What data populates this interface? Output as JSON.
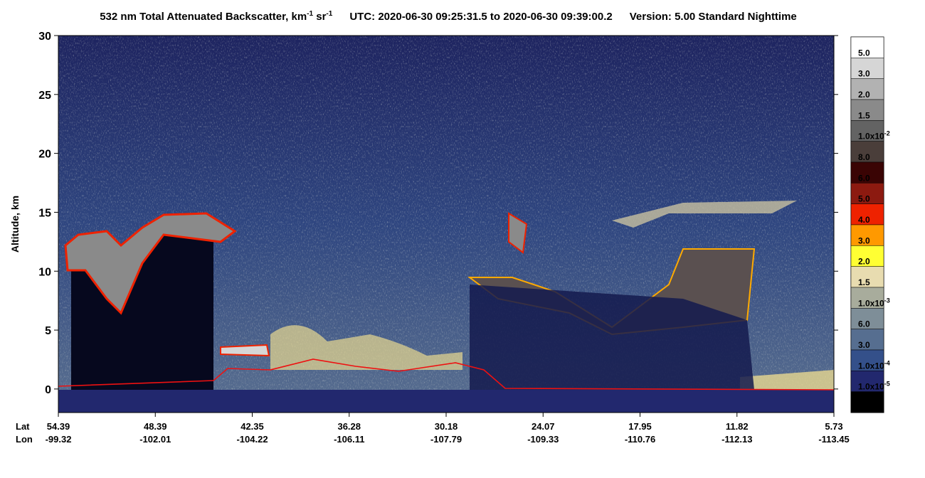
{
  "chart_data": {
    "type": "curtain",
    "title": {
      "main": "532 nm Total Attenuated Backscatter, km",
      "sup1": "-1",
      "mid": " sr",
      "sup2": "-1",
      "utc": "UTC:  2020-06-30 09:25:31.5  to  2020-06-30 09:39:00.2",
      "version": "Version: 5.00  Standard  Nighttime"
    },
    "y_label": "Altitude, km",
    "ylim": [
      -2,
      30
    ],
    "yticks": [
      0,
      5,
      10,
      15,
      20,
      25,
      30
    ],
    "x_row_labels": [
      "Lat",
      "Lon"
    ],
    "lat": [
      "54.39",
      "48.39",
      "42.35",
      "36.28",
      "30.18",
      "24.07",
      "17.95",
      "11.82",
      "5.73"
    ],
    "lon": [
      "-99.32",
      "-102.01",
      "-104.22",
      "-106.11",
      "-107.79",
      "-109.33",
      "-110.76",
      "-112.13",
      "-113.45"
    ],
    "colorbar": [
      {
        "color": "#ffffff",
        "label": "5.0"
      },
      {
        "color": "#d6d6d6",
        "label": "3.0"
      },
      {
        "color": "#b2b2b2",
        "label": "2.0"
      },
      {
        "color": "#8a8a8a",
        "label": "1.5"
      },
      {
        "color": "#636363",
        "label": "1.0x10",
        "exp": "-2"
      },
      {
        "color": "#4a3e3a",
        "label": "8.0"
      },
      {
        "color": "#3a0404",
        "label": "6.0"
      },
      {
        "color": "#8c1a10",
        "label": "5.0"
      },
      {
        "color": "#ee2200",
        "label": "4.0"
      },
      {
        "color": "#ff9900",
        "label": "3.0"
      },
      {
        "color": "#ffff33",
        "label": "2.0"
      },
      {
        "color": "#e8dcb0",
        "label": "1.5"
      },
      {
        "color": "#a8ac9c",
        "label": "1.0x10",
        "exp": "-3"
      },
      {
        "color": "#7e8e98",
        "label": "6.0"
      },
      {
        "color": "#566e90",
        "label": "3.0"
      },
      {
        "color": "#34508a",
        "label": "1.0x10",
        "exp": "-4"
      },
      {
        "color": "#22286e",
        "label": "1.0x10",
        "exp": "-5"
      },
      {
        "color": "#000000"
      }
    ]
  }
}
